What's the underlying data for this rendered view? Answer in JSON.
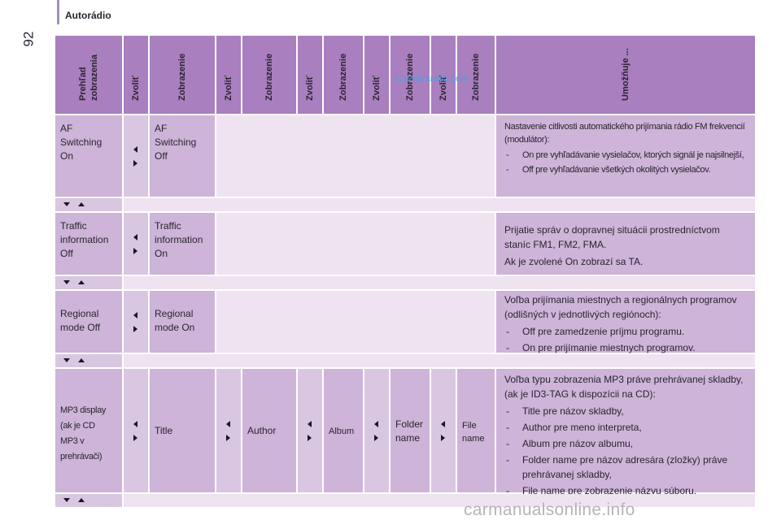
{
  "page": {
    "section_title": "Autorádio",
    "page_number": "92"
  },
  "watermark": "CarManuals2.com",
  "footer_watermark": "carmanualsonline.info",
  "header": {
    "col1": [
      "Prehľad",
      "zobrazenia"
    ],
    "zvolit": "Zvoliť",
    "zobrazenie": "Zobrazenie",
    "umoznuje": "Umožňuje ..."
  },
  "rows": [
    {
      "col1": [
        "AF",
        "Switching",
        "On"
      ],
      "col3": [
        "AF",
        "Switching",
        "Off"
      ],
      "intro": "Nastavenie citlivosti automatického prijímania rádio FM frekvencií (modulátor):",
      "bullets": [
        "On pre vyhľadávanie vysielačov, ktorých signál je najsilnejší,",
        "Off pre vyhľadávanie všetkých okolitých vysielačov."
      ]
    },
    {
      "col1": [
        "Traffic",
        "information",
        "Off"
      ],
      "col3": [
        "Traffic",
        "information",
        "On"
      ],
      "intro": "Prijatie správ o dopravnej situácii prostredníctvom staníc FM1, FM2, FMA.",
      "intro2": "Ak je zvolené On zobrazí sa TA."
    },
    {
      "col1": [
        "Regional",
        "mode Off"
      ],
      "col3": [
        "Regional",
        "mode On"
      ],
      "intro": "Voľba prijímania miestnych a regionálnych programov (odlišných v jednotlivých regiónoch):",
      "bullets": [
        "Off pre zamedzenie príjmu programu.",
        "On pre prijímanie miestnych programov."
      ]
    },
    {
      "col1": [
        "MP3 display",
        "(ak je CD",
        "MP3 v",
        "prehrávači)"
      ],
      "col3": [
        "Title"
      ],
      "col5": [
        "Author"
      ],
      "col7": [
        "Album"
      ],
      "col9": [
        "Folder",
        "name"
      ],
      "col11": [
        "File",
        "name"
      ],
      "intro": "Voľba typu zobrazenia MP3 práve prehrávanej skladby, (ak je ID3-TAG k dispozícii na CD):",
      "bullets": [
        "Title pre názov skladby,",
        "Author pre meno interpreta,",
        "Album pre názov albumu,",
        "Folder name pre názov adresára (zložky) práve prehrávanej skladby,",
        "File name pre zobrazenie názvu súboru."
      ]
    }
  ]
}
